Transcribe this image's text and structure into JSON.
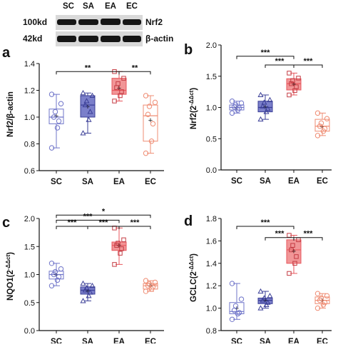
{
  "colors": {
    "SC": "#6f74c9",
    "SA": "#3b3f97",
    "EA": "#e8565c",
    "EC": "#ef8c73",
    "SA_fill": "#6d71c4",
    "EA_fill": "#f08b8c",
    "axis": "#111111",
    "blot": "#151515"
  },
  "western_blot": {
    "columns": [
      "SC",
      "SA",
      "EA",
      "EC"
    ],
    "rows": [
      {
        "size": "100kd",
        "protein": "Nrf2"
      },
      {
        "size": "42kd",
        "protein": "β-actin"
      }
    ]
  },
  "chart_data": [
    {
      "panel": "a",
      "type": "box",
      "categories": [
        "SC",
        "SA",
        "EA",
        "EC"
      ],
      "ylabel": "Nrf2/β-actin",
      "ylim": [
        0.6,
        1.4
      ],
      "yticks": [
        "0.6",
        "0.8",
        "1.0",
        "1.2",
        "1.4"
      ],
      "series": [
        {
          "group": "SC",
          "min": 0.77,
          "q1": 0.95,
          "median": 1.0,
          "q3": 1.06,
          "max": 1.17,
          "mean": 1.01,
          "points": [
            0.77,
            0.92,
            0.97,
            1.0,
            1.04,
            1.1,
            1.17
          ]
        },
        {
          "group": "SA",
          "min": 0.88,
          "q1": 1.0,
          "median": 1.09,
          "q3": 1.16,
          "max": 1.18,
          "mean": 1.08,
          "points": [
            0.88,
            0.98,
            1.04,
            1.09,
            1.12,
            1.16,
            1.18
          ]
        },
        {
          "group": "EA",
          "min": 1.12,
          "q1": 1.17,
          "median": 1.2,
          "q3": 1.29,
          "max": 1.34,
          "mean": 1.22,
          "points": [
            1.12,
            1.16,
            1.19,
            1.22,
            1.25,
            1.29,
            1.34
          ]
        },
        {
          "group": "EC",
          "min": 0.73,
          "q1": 0.82,
          "median": 1.01,
          "q3": 1.09,
          "max": 1.16,
          "mean": 0.98,
          "points": [
            0.73,
            0.82,
            0.95,
            1.02,
            1.08,
            1.11,
            1.16
          ]
        }
      ],
      "significance": [
        {
          "from": "SC",
          "to": "EA",
          "label": "**",
          "y": 1.34
        },
        {
          "from": "EA",
          "to": "EC",
          "label": "**",
          "y": 1.34
        }
      ]
    },
    {
      "panel": "b",
      "type": "box",
      "categories": [
        "SC",
        "SA",
        "EA",
        "EC"
      ],
      "ylabel": "Nrf2(2^-ΔΔct)",
      "ylim": [
        0,
        2.0
      ],
      "yticks": [
        "0.0",
        "0.5",
        "1.0",
        "1.5",
        "2.0"
      ],
      "series": [
        {
          "group": "SC",
          "min": 0.91,
          "q1": 0.96,
          "median": 1.0,
          "q3": 1.04,
          "max": 1.1,
          "mean": 1.0,
          "points": [
            0.91,
            0.96,
            0.99,
            1.01,
            1.04,
            1.07,
            1.1
          ]
        },
        {
          "group": "SA",
          "min": 0.81,
          "q1": 0.93,
          "median": 1.0,
          "q3": 1.1,
          "max": 1.2,
          "mean": 1.01,
          "points": [
            0.81,
            0.93,
            0.98,
            1.02,
            1.08,
            1.12,
            1.2
          ]
        },
        {
          "group": "EA",
          "min": 1.2,
          "q1": 1.28,
          "median": 1.38,
          "q3": 1.46,
          "max": 1.55,
          "mean": 1.38,
          "points": [
            1.2,
            1.27,
            1.33,
            1.38,
            1.43,
            1.47,
            1.55
          ]
        },
        {
          "group": "EC",
          "min": 0.55,
          "q1": 0.62,
          "median": 0.7,
          "q3": 0.81,
          "max": 0.91,
          "mean": 0.7,
          "points": [
            0.55,
            0.62,
            0.66,
            0.7,
            0.75,
            0.82,
            0.91
          ]
        }
      ],
      "significance": [
        {
          "from": "SC",
          "to": "EA",
          "label": "***",
          "y": 1.82
        },
        {
          "from": "SA",
          "to": "EA",
          "label": "***",
          "y": 1.68
        },
        {
          "from": "EA",
          "to": "EC",
          "label": "***",
          "y": 1.68
        }
      ]
    },
    {
      "panel": "c",
      "type": "box",
      "categories": [
        "SC",
        "SA",
        "EA",
        "EC"
      ],
      "ylabel": "NQO1(2^-ΔΔct)",
      "ylim": [
        0,
        2.0
      ],
      "yticks": [
        "0.0",
        "0.5",
        "1.0",
        "1.5",
        "2.0"
      ],
      "series": [
        {
          "group": "SC",
          "min": 0.8,
          "q1": 0.92,
          "median": 1.0,
          "q3": 1.06,
          "max": 1.2,
          "mean": 1.0,
          "points": [
            0.8,
            0.9,
            0.96,
            1.0,
            1.05,
            1.1,
            1.2
          ]
        },
        {
          "group": "SA",
          "min": 0.53,
          "q1": 0.65,
          "median": 0.72,
          "q3": 0.78,
          "max": 0.84,
          "mean": 0.71,
          "points": [
            0.53,
            0.62,
            0.68,
            0.72,
            0.76,
            0.8,
            0.84
          ]
        },
        {
          "group": "EA",
          "min": 1.18,
          "q1": 1.43,
          "median": 1.52,
          "q3": 1.58,
          "max": 1.83,
          "mean": 1.52,
          "points": [
            1.18,
            1.38,
            1.46,
            1.52,
            1.56,
            1.62,
            1.83
          ]
        },
        {
          "group": "EC",
          "min": 0.7,
          "q1": 0.74,
          "median": 0.8,
          "q3": 0.84,
          "max": 0.89,
          "mean": 0.8,
          "points": [
            0.7,
            0.74,
            0.78,
            0.8,
            0.83,
            0.86,
            0.89
          ]
        }
      ],
      "significance": [
        {
          "from": "SC",
          "to": "EC",
          "label": "*",
          "y": 2.06
        },
        {
          "from": "SC",
          "to": "EA",
          "label": "***",
          "y": 1.97
        },
        {
          "from": "SC",
          "to": "SA",
          "label": "***",
          "y": 1.86
        },
        {
          "from": "SA",
          "to": "EA",
          "label": "***",
          "y": 1.86
        },
        {
          "from": "EA",
          "to": "EC",
          "label": "***",
          "y": 1.86
        }
      ]
    },
    {
      "panel": "d",
      "type": "box",
      "categories": [
        "SC",
        "SA",
        "EA",
        "EC"
      ],
      "ylabel": "GCLC(2^-ΔΔct)",
      "ylim": [
        0.8,
        1.8
      ],
      "yticks": [
        "0.8",
        "1.0",
        "1.2",
        "1.4",
        "1.6",
        "1.8"
      ],
      "series": [
        {
          "group": "SC",
          "min": 0.9,
          "q1": 0.95,
          "median": 0.97,
          "q3": 1.05,
          "max": 1.22,
          "mean": 1.0,
          "points": [
            0.9,
            0.95,
            0.96,
            0.98,
            1.02,
            1.08,
            1.22
          ]
        },
        {
          "group": "SA",
          "min": 1.0,
          "q1": 1.04,
          "median": 1.07,
          "q3": 1.09,
          "max": 1.15,
          "mean": 1.07,
          "points": [
            1.0,
            1.03,
            1.05,
            1.07,
            1.09,
            1.11,
            1.15
          ]
        },
        {
          "group": "EA",
          "min": 1.31,
          "q1": 1.4,
          "median": 1.52,
          "q3": 1.61,
          "max": 1.65,
          "mean": 1.51,
          "points": [
            1.31,
            1.4,
            1.46,
            1.52,
            1.56,
            1.61,
            1.65
          ]
        },
        {
          "group": "EC",
          "min": 1.0,
          "q1": 1.04,
          "median": 1.07,
          "q3": 1.1,
          "max": 1.13,
          "mean": 1.07,
          "points": [
            1.0,
            1.03,
            1.05,
            1.07,
            1.09,
            1.11,
            1.13
          ]
        }
      ],
      "significance": [
        {
          "from": "SC",
          "to": "EA",
          "label": "***",
          "y": 1.73
        },
        {
          "from": "SA",
          "to": "EA",
          "label": "***",
          "y": 1.63
        },
        {
          "from": "EA",
          "to": "EC",
          "label": "***",
          "y": 1.63
        }
      ]
    }
  ]
}
